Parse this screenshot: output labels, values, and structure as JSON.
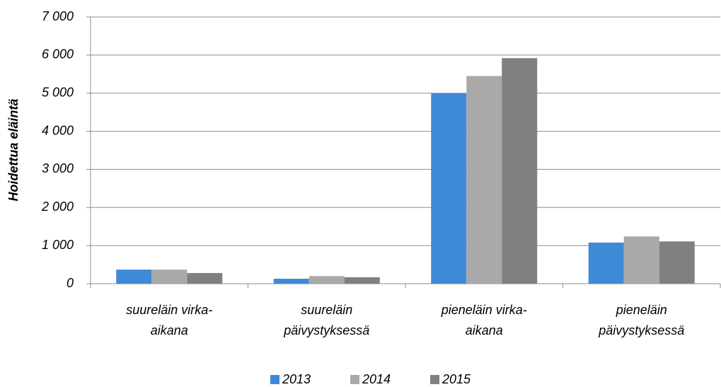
{
  "chart_data": {
    "type": "bar",
    "y_label": "Hoidettua eläintä",
    "categories": [
      [
        "suureläin virka-",
        "aikana"
      ],
      [
        "suureläin",
        "päivystyksessä"
      ],
      [
        "pieneläin virka-",
        "aikana"
      ],
      [
        "pieneläin",
        "päivystyksessä"
      ]
    ],
    "series": [
      {
        "name": "2013",
        "color": "#3f8ad6",
        "values": [
          370,
          130,
          5000,
          1080
        ]
      },
      {
        "name": "2014",
        "color": "#a9a9a9",
        "values": [
          370,
          200,
          5450,
          1240
        ]
      },
      {
        "name": "2015",
        "color": "#808080",
        "values": [
          280,
          170,
          5920,
          1110
        ]
      }
    ],
    "ylim": [
      0,
      7000
    ],
    "yticks": [
      0,
      {
        "value": 1000,
        "label": "1 000"
      },
      {
        "value": 2000,
        "label": "2 000"
      },
      {
        "value": 3000,
        "label": "3 000"
      },
      {
        "value": 4000,
        "label": "4 000"
      },
      {
        "value": 5000,
        "label": "5 000"
      },
      {
        "value": 6000,
        "label": "6 000"
      },
      {
        "value": 7000,
        "label": "7 000"
      }
    ],
    "grid": true,
    "legend": "bottom"
  }
}
